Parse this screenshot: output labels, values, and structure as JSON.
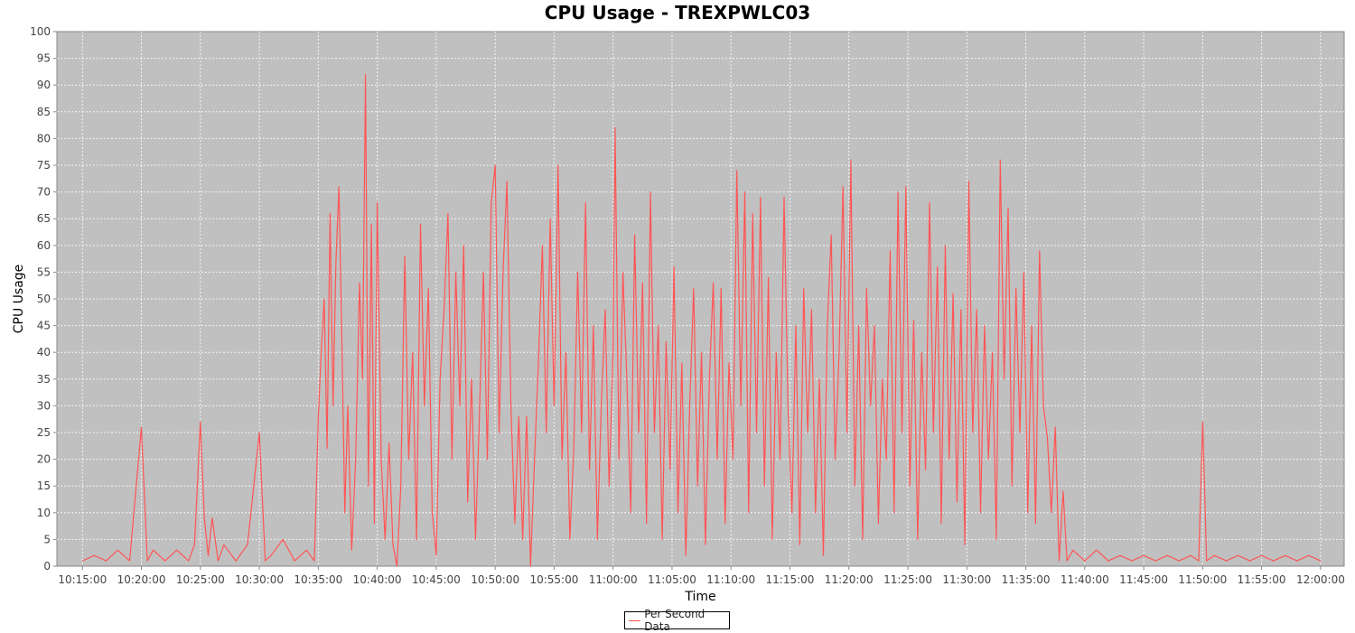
{
  "chart_data": {
    "type": "line",
    "title": "CPU Usage - TREXPWLC03",
    "xlabel": "Time",
    "ylabel": "CPU Usage",
    "ylim": [
      0,
      100
    ],
    "yticks": [
      0,
      5,
      10,
      15,
      20,
      25,
      30,
      35,
      40,
      45,
      50,
      55,
      60,
      65,
      70,
      75,
      80,
      85,
      90,
      95,
      100
    ],
    "xlim": [
      "10:12:50",
      "12:02:00"
    ],
    "xticks": [
      "10:15:00",
      "10:20:00",
      "10:25:00",
      "10:30:00",
      "10:35:00",
      "10:40:00",
      "10:45:00",
      "10:50:00",
      "10:55:00",
      "11:00:00",
      "11:05:00",
      "11:10:00",
      "11:15:00",
      "11:20:00",
      "11:25:00",
      "11:30:00",
      "11:35:00",
      "11:40:00",
      "11:45:00",
      "11:50:00",
      "11:55:00",
      "12:00:00"
    ],
    "grid": true,
    "background": "#c0c0c0",
    "legend_position": "bottom-center",
    "series": [
      {
        "name": "Per Second Data",
        "color": "#ff5555",
        "points": [
          [
            "10:15:00",
            1
          ],
          [
            "10:16:00",
            2
          ],
          [
            "10:17:00",
            1
          ],
          [
            "10:18:00",
            3
          ],
          [
            "10:19:00",
            1
          ],
          [
            "10:20:00",
            26
          ],
          [
            "10:20:30",
            1
          ],
          [
            "10:21:00",
            3
          ],
          [
            "10:22:00",
            1
          ],
          [
            "10:23:00",
            3
          ],
          [
            "10:24:00",
            1
          ],
          [
            "10:24:30",
            4
          ],
          [
            "10:25:00",
            27
          ],
          [
            "10:25:20",
            9
          ],
          [
            "10:25:40",
            2
          ],
          [
            "10:26:00",
            9
          ],
          [
            "10:26:30",
            1
          ],
          [
            "10:27:00",
            4
          ],
          [
            "10:28:00",
            1
          ],
          [
            "10:29:00",
            4
          ],
          [
            "10:30:00",
            25
          ],
          [
            "10:30:30",
            1
          ],
          [
            "10:31:00",
            2
          ],
          [
            "10:32:00",
            5
          ],
          [
            "10:33:00",
            1
          ],
          [
            "10:34:00",
            3
          ],
          [
            "10:34:40",
            1
          ],
          [
            "10:35:00",
            28
          ],
          [
            "10:35:15",
            40
          ],
          [
            "10:35:30",
            50
          ],
          [
            "10:35:45",
            22
          ],
          [
            "10:36:00",
            66
          ],
          [
            "10:36:15",
            30
          ],
          [
            "10:36:30",
            57
          ],
          [
            "10:36:45",
            71
          ],
          [
            "10:37:00",
            42
          ],
          [
            "10:37:15",
            10
          ],
          [
            "10:37:30",
            30
          ],
          [
            "10:37:50",
            3
          ],
          [
            "10:38:10",
            20
          ],
          [
            "10:38:30",
            53
          ],
          [
            "10:38:45",
            35
          ],
          [
            "10:39:00",
            92
          ],
          [
            "10:39:15",
            15
          ],
          [
            "10:39:30",
            64
          ],
          [
            "10:39:45",
            8
          ],
          [
            "10:40:00",
            68
          ],
          [
            "10:40:20",
            20
          ],
          [
            "10:40:40",
            5
          ],
          [
            "10:41:00",
            23
          ],
          [
            "10:41:20",
            4
          ],
          [
            "10:41:40",
            0
          ],
          [
            "10:42:00",
            15
          ],
          [
            "10:42:20",
            58
          ],
          [
            "10:42:40",
            20
          ],
          [
            "10:43:00",
            40
          ],
          [
            "10:43:20",
            5
          ],
          [
            "10:43:40",
            64
          ],
          [
            "10:44:00",
            30
          ],
          [
            "10:44:20",
            52
          ],
          [
            "10:44:40",
            10
          ],
          [
            "10:45:00",
            2
          ],
          [
            "10:45:20",
            35
          ],
          [
            "10:45:40",
            48
          ],
          [
            "10:46:00",
            66
          ],
          [
            "10:46:20",
            20
          ],
          [
            "10:46:40",
            55
          ],
          [
            "10:47:00",
            30
          ],
          [
            "10:47:20",
            60
          ],
          [
            "10:47:40",
            12
          ],
          [
            "10:48:00",
            35
          ],
          [
            "10:48:20",
            5
          ],
          [
            "10:48:40",
            28
          ],
          [
            "10:49:00",
            55
          ],
          [
            "10:49:20",
            20
          ],
          [
            "10:49:40",
            68
          ],
          [
            "10:50:00",
            75
          ],
          [
            "10:50:20",
            25
          ],
          [
            "10:50:40",
            55
          ],
          [
            "10:51:00",
            72
          ],
          [
            "10:51:20",
            30
          ],
          [
            "10:51:40",
            8
          ],
          [
            "10:52:00",
            28
          ],
          [
            "10:52:20",
            5
          ],
          [
            "10:52:40",
            28
          ],
          [
            "10:53:00",
            0
          ],
          [
            "10:53:20",
            20
          ],
          [
            "10:53:40",
            38
          ],
          [
            "10:54:00",
            60
          ],
          [
            "10:54:20",
            25
          ],
          [
            "10:54:40",
            65
          ],
          [
            "10:55:00",
            30
          ],
          [
            "10:55:20",
            75
          ],
          [
            "10:55:40",
            20
          ],
          [
            "10:56:00",
            40
          ],
          [
            "10:56:20",
            5
          ],
          [
            "10:56:40",
            22
          ],
          [
            "10:57:00",
            55
          ],
          [
            "10:57:20",
            25
          ],
          [
            "10:57:40",
            68
          ],
          [
            "10:58:00",
            18
          ],
          [
            "10:58:20",
            45
          ],
          [
            "10:58:40",
            5
          ],
          [
            "10:59:00",
            30
          ],
          [
            "10:59:20",
            48
          ],
          [
            "10:59:40",
            15
          ],
          [
            "11:00:00",
            40
          ],
          [
            "11:00:10",
            82
          ],
          [
            "11:00:30",
            20
          ],
          [
            "11:00:50",
            55
          ],
          [
            "11:01:10",
            35
          ],
          [
            "11:01:30",
            10
          ],
          [
            "11:01:50",
            62
          ],
          [
            "11:02:10",
            25
          ],
          [
            "11:02:30",
            53
          ],
          [
            "11:02:50",
            8
          ],
          [
            "11:03:10",
            70
          ],
          [
            "11:03:30",
            25
          ],
          [
            "11:03:50",
            45
          ],
          [
            "11:04:10",
            5
          ],
          [
            "11:04:30",
            42
          ],
          [
            "11:04:50",
            18
          ],
          [
            "11:05:10",
            56
          ],
          [
            "11:05:30",
            10
          ],
          [
            "11:05:50",
            38
          ],
          [
            "11:06:10",
            2
          ],
          [
            "11:06:30",
            30
          ],
          [
            "11:06:50",
            52
          ],
          [
            "11:07:10",
            15
          ],
          [
            "11:07:30",
            40
          ],
          [
            "11:07:50",
            4
          ],
          [
            "11:08:10",
            35
          ],
          [
            "11:08:30",
            53
          ],
          [
            "11:08:50",
            20
          ],
          [
            "11:09:10",
            52
          ],
          [
            "11:09:30",
            8
          ],
          [
            "11:09:50",
            38
          ],
          [
            "11:10:10",
            20
          ],
          [
            "11:10:30",
            74
          ],
          [
            "11:10:50",
            30
          ],
          [
            "11:11:10",
            70
          ],
          [
            "11:11:30",
            10
          ],
          [
            "11:11:50",
            66
          ],
          [
            "11:12:10",
            25
          ],
          [
            "11:12:30",
            69
          ],
          [
            "11:12:50",
            15
          ],
          [
            "11:13:10",
            54
          ],
          [
            "11:13:30",
            5
          ],
          [
            "11:13:50",
            40
          ],
          [
            "11:14:10",
            20
          ],
          [
            "11:14:30",
            69
          ],
          [
            "11:14:50",
            30
          ],
          [
            "11:15:10",
            10
          ],
          [
            "11:15:30",
            45
          ],
          [
            "11:15:50",
            4
          ],
          [
            "11:16:10",
            52
          ],
          [
            "11:16:30",
            25
          ],
          [
            "11:16:50",
            48
          ],
          [
            "11:17:10",
            10
          ],
          [
            "11:17:30",
            35
          ],
          [
            "11:17:50",
            2
          ],
          [
            "11:18:10",
            45
          ],
          [
            "11:18:30",
            62
          ],
          [
            "11:18:50",
            20
          ],
          [
            "11:19:10",
            40
          ],
          [
            "11:19:30",
            71
          ],
          [
            "11:19:50",
            25
          ],
          [
            "11:20:10",
            76
          ],
          [
            "11:20:30",
            15
          ],
          [
            "11:20:50",
            45
          ],
          [
            "11:21:10",
            5
          ],
          [
            "11:21:30",
            52
          ],
          [
            "11:21:50",
            30
          ],
          [
            "11:22:10",
            45
          ],
          [
            "11:22:30",
            8
          ],
          [
            "11:22:50",
            35
          ],
          [
            "11:23:10",
            20
          ],
          [
            "11:23:30",
            59
          ],
          [
            "11:23:50",
            10
          ],
          [
            "11:24:10",
            70
          ],
          [
            "11:24:30",
            25
          ],
          [
            "11:24:50",
            71
          ],
          [
            "11:25:10",
            15
          ],
          [
            "11:25:30",
            46
          ],
          [
            "11:25:50",
            5
          ],
          [
            "11:26:10",
            40
          ],
          [
            "11:26:30",
            18
          ],
          [
            "11:26:50",
            68
          ],
          [
            "11:27:10",
            25
          ],
          [
            "11:27:30",
            56
          ],
          [
            "11:27:50",
            8
          ],
          [
            "11:28:10",
            60
          ],
          [
            "11:28:30",
            20
          ],
          [
            "11:28:50",
            51
          ],
          [
            "11:29:10",
            12
          ],
          [
            "11:29:30",
            48
          ],
          [
            "11:29:50",
            4
          ],
          [
            "11:30:10",
            72
          ],
          [
            "11:30:30",
            25
          ],
          [
            "11:30:50",
            48
          ],
          [
            "11:31:10",
            10
          ],
          [
            "11:31:30",
            45
          ],
          [
            "11:31:50",
            20
          ],
          [
            "11:32:10",
            40
          ],
          [
            "11:32:30",
            5
          ],
          [
            "11:32:50",
            76
          ],
          [
            "11:33:10",
            35
          ],
          [
            "11:33:30",
            67
          ],
          [
            "11:33:50",
            15
          ],
          [
            "11:34:10",
            52
          ],
          [
            "11:34:30",
            25
          ],
          [
            "11:34:50",
            55
          ],
          [
            "11:35:10",
            10
          ],
          [
            "11:35:30",
            45
          ],
          [
            "11:35:50",
            8
          ],
          [
            "11:36:10",
            59
          ],
          [
            "11:36:30",
            30
          ],
          [
            "11:36:50",
            24
          ],
          [
            "11:37:10",
            10
          ],
          [
            "11:37:30",
            26
          ],
          [
            "11:37:50",
            1
          ],
          [
            "11:38:10",
            14
          ],
          [
            "11:38:30",
            1
          ],
          [
            "11:39:00",
            3
          ],
          [
            "11:40:00",
            1
          ],
          [
            "11:41:00",
            3
          ],
          [
            "11:42:00",
            1
          ],
          [
            "11:43:00",
            2
          ],
          [
            "11:44:00",
            1
          ],
          [
            "11:45:00",
            2
          ],
          [
            "11:46:00",
            1
          ],
          [
            "11:47:00",
            2
          ],
          [
            "11:48:00",
            1
          ],
          [
            "11:49:00",
            2
          ],
          [
            "11:49:40",
            1
          ],
          [
            "11:50:00",
            27
          ],
          [
            "11:50:20",
            1
          ],
          [
            "11:51:00",
            2
          ],
          [
            "11:52:00",
            1
          ],
          [
            "11:53:00",
            2
          ],
          [
            "11:54:00",
            1
          ],
          [
            "11:55:00",
            2
          ],
          [
            "11:56:00",
            1
          ],
          [
            "11:57:00",
            2
          ],
          [
            "11:58:00",
            1
          ],
          [
            "11:59:00",
            2
          ],
          [
            "12:00:00",
            1
          ]
        ]
      }
    ]
  }
}
